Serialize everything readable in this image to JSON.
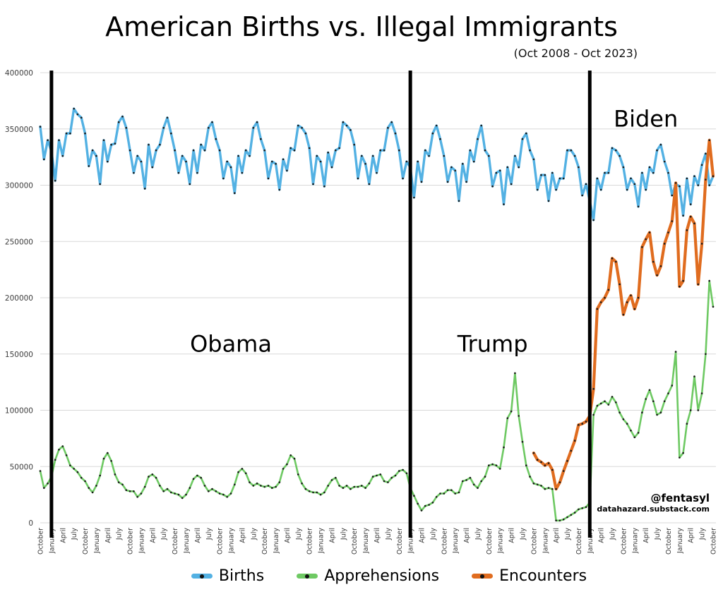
{
  "header": {
    "title": "American Births vs. Illegal Immigrants",
    "subtitle": "(Oct 2008 - Oct 2023)"
  },
  "watermark": {
    "handle": "@fentasyl",
    "site": "datahazard.substack.com"
  },
  "legend": [
    {
      "label": "Births",
      "color": "#53b1e3"
    },
    {
      "label": "Apprehensions",
      "color": "#6ec963"
    },
    {
      "label": "Encounters",
      "color": "#e06c1f"
    }
  ],
  "chart_data": {
    "type": "line",
    "title": "American Births vs. Illegal Immigrants",
    "subtitle": "(Oct 2008 - Oct 2023)",
    "xlabel": "",
    "ylabel": "",
    "x_start": "2008-10",
    "x_end": "2023-10",
    "x_count": 181,
    "ylim": [
      0,
      400000
    ],
    "y_ticks": [
      0,
      50000,
      100000,
      150000,
      200000,
      250000,
      300000,
      350000,
      400000
    ],
    "grid": "horizontal",
    "legend_position": "bottom",
    "values_unit": "persons per month",
    "values_scale": 1000,
    "x_tick_every": 3,
    "x_tick_labels": [
      "October",
      "January",
      "April",
      "July",
      "October",
      "January",
      "April",
      "July",
      "October",
      "January",
      "April",
      "July",
      "October",
      "January",
      "April",
      "July",
      "October",
      "January",
      "April",
      "July",
      "October",
      "January",
      "April",
      "July",
      "October",
      "January",
      "April",
      "July",
      "October",
      "January",
      "April",
      "July",
      "October",
      "January",
      "April",
      "July",
      "October",
      "January",
      "April",
      "July",
      "October",
      "January",
      "April",
      "July",
      "October",
      "January",
      "April",
      "July",
      "October",
      "January",
      "April",
      "July",
      "October",
      "January",
      "April",
      "July",
      "October",
      "January",
      "April",
      "July",
      "October"
    ],
    "event_lines": [
      {
        "label": "Obama start",
        "month": "2009-01",
        "month_index": 3
      },
      {
        "label": "Trump start",
        "month": "2017-01",
        "month_index": 99
      },
      {
        "label": "Biden start",
        "month": "2021-01",
        "month_index": 147
      }
    ],
    "annotations": [
      {
        "text": "Obama",
        "month_index": 51,
        "y_value": 152000
      },
      {
        "text": "Trump",
        "month_index": 121,
        "y_value": 152000
      },
      {
        "text": "Biden",
        "month_index": 162,
        "y_value": 352000
      }
    ],
    "series": [
      {
        "name": "Births",
        "color": "#53b1e3",
        "width": 3.4,
        "start_index": 0,
        "values": [
          352,
          323,
          340,
          330,
          304,
          340,
          326,
          346,
          346,
          368,
          363,
          360,
          346,
          317,
          331,
          326,
          301,
          340,
          321,
          336,
          337,
          356,
          361,
          351,
          331,
          311,
          326,
          321,
          297,
          336,
          316,
          331,
          336,
          351,
          360,
          346,
          331,
          311,
          326,
          321,
          301,
          331,
          311,
          336,
          331,
          351,
          356,
          341,
          331,
          306,
          321,
          316,
          293,
          326,
          311,
          331,
          326,
          351,
          356,
          341,
          331,
          306,
          321,
          319,
          296,
          323,
          313,
          333,
          331,
          353,
          351,
          346,
          333,
          301,
          326,
          321,
          299,
          329,
          316,
          331,
          333,
          356,
          353,
          349,
          336,
          306,
          326,
          319,
          301,
          326,
          311,
          331,
          331,
          351,
          356,
          346,
          331,
          306,
          321,
          316,
          289,
          321,
          303,
          331,
          326,
          346,
          353,
          341,
          326,
          303,
          316,
          313,
          286,
          319,
          303,
          331,
          321,
          341,
          353,
          331,
          326,
          299,
          311,
          313,
          283,
          316,
          301,
          326,
          316,
          341,
          346,
          331,
          323,
          296,
          309,
          309,
          286,
          311,
          296,
          306,
          306,
          331,
          331,
          326,
          316,
          291,
          301,
          286,
          269,
          306,
          296,
          311,
          311,
          333,
          331,
          326,
          316,
          296,
          306,
          301,
          281,
          311,
          296,
          316,
          311,
          331,
          336,
          321,
          311,
          291,
          301,
          299,
          273,
          306,
          283,
          308,
          300,
          318,
          328,
          300,
          308
        ]
      },
      {
        "name": "Apprehensions",
        "color": "#6ec963",
        "width": 2.6,
        "start_index": 0,
        "values": [
          46,
          31,
          35,
          41,
          56,
          65,
          68,
          60,
          51,
          48,
          45,
          40,
          37,
          31,
          27,
          33,
          42,
          57,
          62,
          55,
          43,
          36,
          34,
          29,
          28,
          28,
          23,
          26,
          32,
          41,
          43,
          40,
          33,
          28,
          30,
          27,
          26,
          25,
          22,
          25,
          31,
          39,
          42,
          40,
          33,
          28,
          30,
          28,
          26,
          25,
          23,
          26,
          34,
          45,
          48,
          44,
          36,
          33,
          35,
          33,
          32,
          33,
          31,
          32,
          36,
          48,
          52,
          60,
          57,
          43,
          35,
          30,
          28,
          27,
          27,
          25,
          27,
          33,
          38,
          40,
          33,
          31,
          33,
          30,
          32,
          32,
          33,
          31,
          35,
          41,
          42,
          43,
          37,
          36,
          40,
          42,
          46,
          47,
          44,
          31,
          24,
          17,
          11,
          15,
          16,
          18,
          23,
          26,
          26,
          29,
          29,
          26,
          27,
          37,
          38,
          40,
          34,
          31,
          37,
          41,
          51,
          52,
          51,
          48,
          67,
          93,
          99,
          133,
          95,
          72,
          51,
          41,
          35,
          34,
          33,
          30,
          31,
          30,
          2,
          2,
          3,
          5,
          7,
          9,
          12,
          13,
          14,
          18,
          96,
          104,
          106,
          108,
          105,
          112,
          107,
          98,
          92,
          88,
          82,
          76,
          80,
          98,
          110,
          118,
          108,
          96,
          98,
          108,
          115,
          122,
          152,
          58,
          62,
          88,
          100,
          130,
          100,
          115,
          150,
          215,
          192
        ]
      },
      {
        "name": "Encounters",
        "color": "#e06c1f",
        "width": 4.2,
        "start_index": 132,
        "values": [
          62,
          56,
          54,
          51,
          53,
          47,
          30,
          36,
          46,
          55,
          64,
          73,
          87,
          88,
          90,
          95,
          119,
          190,
          196,
          200,
          207,
          235,
          232,
          212,
          185,
          196,
          202,
          190,
          200,
          245,
          252,
          258,
          232,
          220,
          228,
          248,
          258,
          268,
          302,
          210,
          215,
          260,
          272,
          266,
          212,
          248,
          305,
          340,
          308
        ]
      }
    ]
  }
}
